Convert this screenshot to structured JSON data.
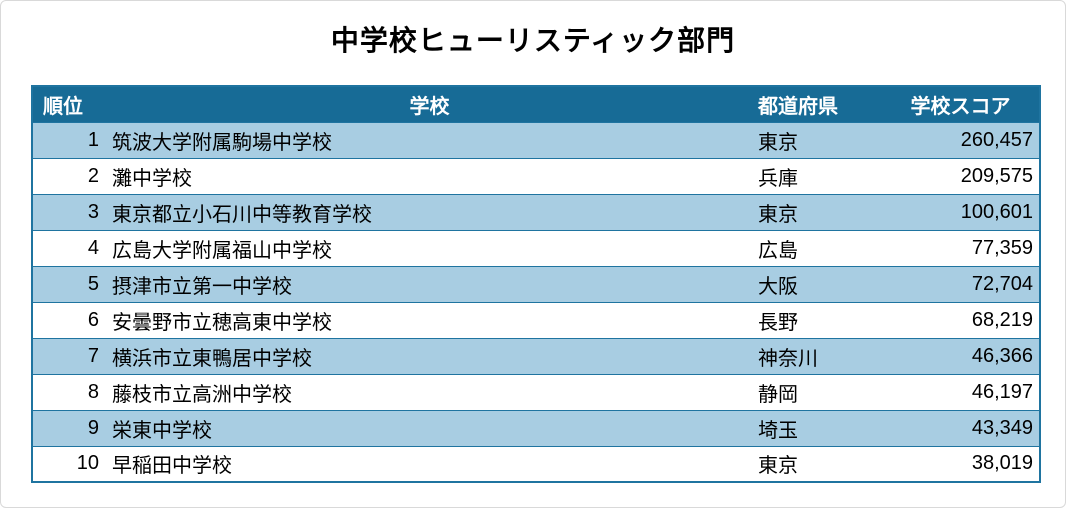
{
  "page": {
    "title": "中学校ヒューリスティック部門"
  },
  "colors": {
    "header_bg": "#176B96",
    "header_text": "#FFFFFF",
    "row_alt_bg": "#A8CDE2",
    "row_bg": "#FFFFFF",
    "border": "#1F74A0",
    "title_text": "#000000"
  },
  "table": {
    "columns": [
      {
        "key": "rank",
        "label": "順位"
      },
      {
        "key": "school",
        "label": "学校"
      },
      {
        "key": "prefecture",
        "label": "都道府県"
      },
      {
        "key": "score",
        "label": "学校スコア"
      }
    ],
    "rows": [
      {
        "rank": "1",
        "school": "筑波大学附属駒場中学校",
        "prefecture": "東京",
        "score": "260,457"
      },
      {
        "rank": "2",
        "school": "灘中学校",
        "prefecture": "兵庫",
        "score": "209,575"
      },
      {
        "rank": "3",
        "school": "東京都立小石川中等教育学校",
        "prefecture": "東京",
        "score": "100,601"
      },
      {
        "rank": "4",
        "school": "広島大学附属福山中学校",
        "prefecture": "広島",
        "score": "77,359"
      },
      {
        "rank": "5",
        "school": "摂津市立第一中学校",
        "prefecture": "大阪",
        "score": "72,704"
      },
      {
        "rank": "6",
        "school": "安曇野市立穂高東中学校",
        "prefecture": "長野",
        "score": "68,219"
      },
      {
        "rank": "7",
        "school": "横浜市立東鴨居中学校",
        "prefecture": "神奈川",
        "score": "46,366"
      },
      {
        "rank": "8",
        "school": "藤枝市立高洲中学校",
        "prefecture": "静岡",
        "score": "46,197"
      },
      {
        "rank": "9",
        "school": "栄東中学校",
        "prefecture": "埼玉",
        "score": "43,349"
      },
      {
        "rank": "10",
        "school": "早稲田中学校",
        "prefecture": "東京",
        "score": "38,019"
      }
    ]
  },
  "chart_data": {
    "type": "table",
    "title": "中学校ヒューリスティック部門",
    "columns": [
      "順位",
      "学校",
      "都道府県",
      "学校スコア"
    ],
    "rows": [
      [
        1,
        "筑波大学附属駒場中学校",
        "東京",
        260457
      ],
      [
        2,
        "灘中学校",
        "兵庫",
        209575
      ],
      [
        3,
        "東京都立小石川中等教育学校",
        "東京",
        100601
      ],
      [
        4,
        "広島大学附属福山中学校",
        "広島",
        77359
      ],
      [
        5,
        "摂津市立第一中学校",
        "大阪",
        72704
      ],
      [
        6,
        "安曇野市立穂高東中学校",
        "長野",
        68219
      ],
      [
        7,
        "横浜市立東鴨居中学校",
        "神奈川",
        46366
      ],
      [
        8,
        "藤枝市立高洲中学校",
        "静岡",
        46197
      ],
      [
        9,
        "栄東中学校",
        "埼玉",
        43349
      ],
      [
        10,
        "早稲田中学校",
        "東京",
        38019
      ]
    ],
    "layout": {
      "alternating_row_colors": true,
      "header_style": "dark-blue-bold-white",
      "score_alignment": "right",
      "rank_alignment": "right"
    }
  }
}
